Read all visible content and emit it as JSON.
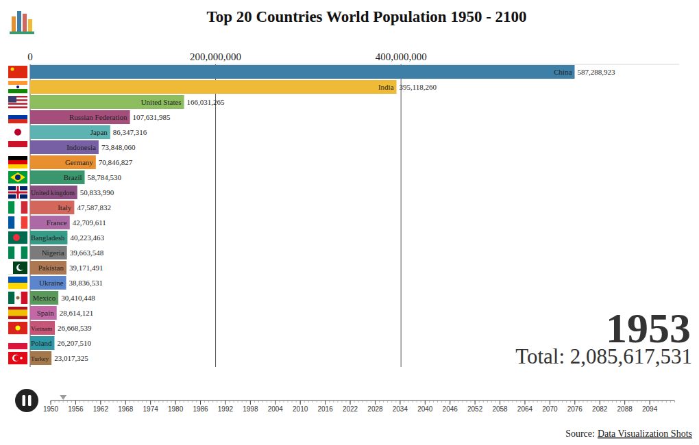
{
  "chart_data": {
    "type": "bar",
    "title": "Top 20 Countries World Population 1950 - 2100",
    "orientation": "horizontal",
    "data_labels": true,
    "grid": true,
    "categories": [
      "China",
      "India",
      "United States",
      "Russian Federation",
      "Japan",
      "Indonesia",
      "Germany",
      "Brazil",
      "United kingdom",
      "Italy",
      "France",
      "Bangladesh",
      "Nigeria",
      "Pakistan",
      "Ukraine",
      "Mexico",
      "Spain",
      "Vietnam",
      "Poland",
      "Turkey"
    ],
    "values": [
      587288923,
      395118260,
      166031265,
      107631985,
      86347316,
      73848060,
      70846827,
      58784530,
      50833990,
      47587832,
      42709611,
      40223463,
      39663548,
      39171491,
      38836531,
      30410448,
      28614121,
      26668539,
      26207510,
      23017325
    ],
    "value_labels": [
      "587,288,923",
      "395,118,260",
      "166,031,265",
      "107,631,985",
      "86,347,316",
      "73,848,060",
      "70,846,827",
      "58,784,530",
      "50,833,990",
      "47,587,832",
      "42,709,611",
      "40,223,463",
      "39,663,548",
      "39,171,491",
      "38,836,531",
      "30,410,448",
      "28,614,121",
      "26,668,539",
      "26,207,510",
      "23,017,325"
    ],
    "colors": [
      "#3d7fa6",
      "#efbb36",
      "#8cbd5f",
      "#a54e7c",
      "#5db3b1",
      "#7860a4",
      "#e8902f",
      "#3a966c",
      "#8b4e80",
      "#d4675c",
      "#ad69a6",
      "#389b88",
      "#7b7b7b",
      "#ad7752",
      "#5b85cc",
      "#5a985c",
      "#c268a6",
      "#c75578",
      "#2e98a6",
      "#a4784a"
    ],
    "xlim": [
      0,
      700000000
    ],
    "xticks": [
      0,
      {
        "value": 200000000,
        "label": "200,000,000"
      },
      {
        "value": 400000000,
        "label": "400,000,000"
      }
    ],
    "annotations": [
      {
        "text": "Total: 2,085,617,531"
      }
    ]
  },
  "timeline": {
    "xlim": [
      1950,
      2100
    ],
    "current": 1953,
    "ticks": [
      1950,
      1956,
      1962,
      1968,
      1974,
      1980,
      1986,
      1992,
      1998,
      2004,
      2010,
      2016,
      2022,
      2028,
      2034,
      2040,
      2046,
      2052,
      2058,
      2064,
      2070,
      2076,
      2082,
      2088,
      2094
    ]
  },
  "source": {
    "label": "Source:",
    "text": "Data Visualization Shots"
  }
}
